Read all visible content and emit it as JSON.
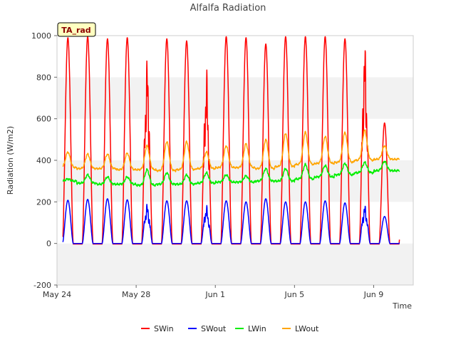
{
  "chart_data": {
    "type": "line",
    "title": "Alfalfa Radiation",
    "xlabel": "Time",
    "ylabel": "Radiation (W/m2)",
    "site_tag": "TA_rad",
    "ylim": [
      -200,
      1000
    ],
    "yticks": [
      -200,
      0,
      200,
      400,
      600,
      800,
      1000
    ],
    "xlim_days": [
      0,
      18
    ],
    "xticks": [
      {
        "day": 0,
        "label": "May 24"
      },
      {
        "day": 4,
        "label": "May 28"
      },
      {
        "day": 8,
        "label": "Jun 1"
      },
      {
        "day": 12,
        "label": "Jun 5"
      },
      {
        "day": 16,
        "label": "Jun 9"
      }
    ],
    "data_days": [
      0.3,
      17.3
    ],
    "grid": "horizontal bands",
    "legend_placement": "bottom",
    "series": [
      {
        "name": "SWin",
        "color": "#ff0000",
        "daily_peak": [
          990,
          995,
          985,
          990,
          910,
          985,
          975,
          845,
          995,
          990,
          960,
          995,
          995,
          995,
          985,
          985,
          580
        ]
      },
      {
        "name": "SWout",
        "color": "#0000ff",
        "daily_peak": [
          208,
          212,
          215,
          210,
          195,
          205,
          205,
          185,
          205,
          200,
          215,
          200,
          200,
          205,
          195,
          190,
          130
        ]
      },
      {
        "name": "LWin",
        "color": "#00ee00",
        "night_level": [
          300,
          290,
          285,
          285,
          280,
          285,
          285,
          290,
          295,
          295,
          300,
          300,
          310,
          320,
          330,
          340,
          350
        ],
        "day_peak": [
          310,
          330,
          320,
          320,
          355,
          340,
          330,
          340,
          330,
          325,
          360,
          360,
          380,
          375,
          385,
          390,
          395
        ]
      },
      {
        "name": "LWout",
        "color": "#ffa500",
        "night_level": [
          365,
          360,
          360,
          355,
          355,
          350,
          355,
          360,
          365,
          365,
          360,
          370,
          380,
          385,
          390,
          400,
          405
        ],
        "day_peak": [
          440,
          430,
          430,
          435,
          470,
          490,
          490,
          440,
          470,
          480,
          500,
          530,
          535,
          515,
          535,
          545,
          470
        ]
      }
    ]
  }
}
